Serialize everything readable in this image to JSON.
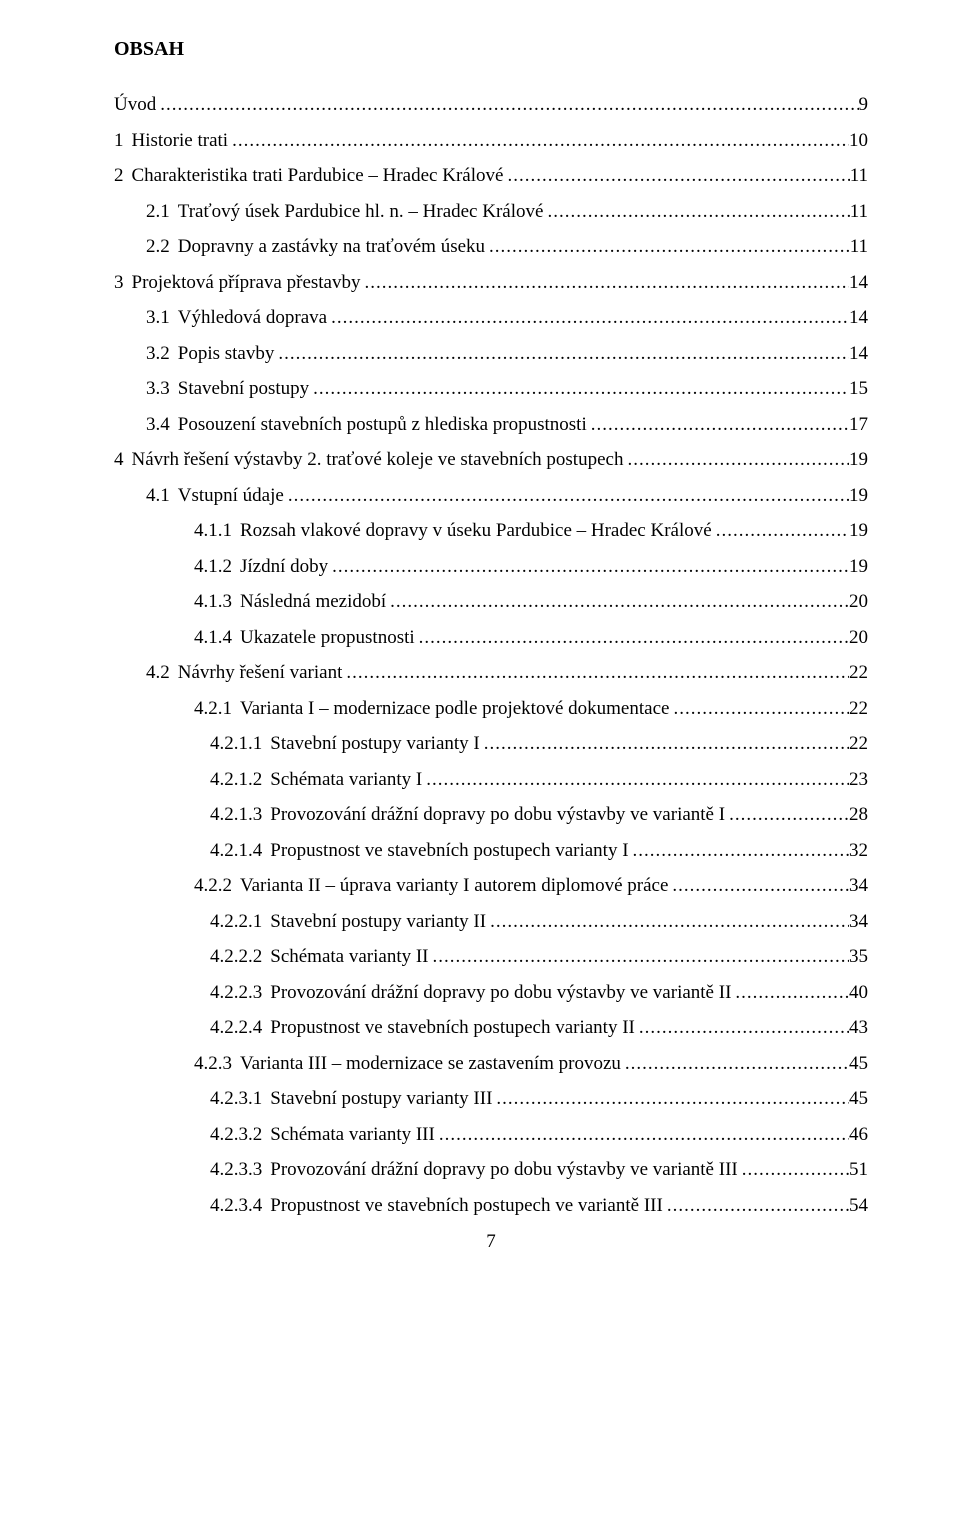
{
  "title": "OBSAH",
  "footer_page": "7",
  "toc": [
    {
      "num": "",
      "label": "Úvod",
      "page": "9",
      "indent": 0
    },
    {
      "num": "1",
      "label": "Historie trati",
      "page": "10",
      "indent": 0
    },
    {
      "num": "2",
      "label": "Charakteristika trati Pardubice – Hradec Králové",
      "page": "11",
      "indent": 0
    },
    {
      "num": "2.1",
      "label": "Traťový úsek Pardubice hl. n. – Hradec Králové",
      "page": "11",
      "indent": 1
    },
    {
      "num": "2.2",
      "label": "Dopravny a zastávky na traťovém úseku",
      "page": "11",
      "indent": 1
    },
    {
      "num": "3",
      "label": "Projektová příprava přestavby",
      "page": "14",
      "indent": 0
    },
    {
      "num": "3.1",
      "label": "Výhledová doprava",
      "page": "14",
      "indent": 1
    },
    {
      "num": "3.2",
      "label": "Popis stavby",
      "page": "14",
      "indent": 1
    },
    {
      "num": "3.3",
      "label": "Stavební postupy",
      "page": "15",
      "indent": 1
    },
    {
      "num": "3.4",
      "label": "Posouzení stavebních postupů z hlediska propustnosti",
      "page": "17",
      "indent": 1
    },
    {
      "num": "4",
      "label": "Návrh řešení výstavby 2. traťové koleje ve stavebních postupech",
      "page": "19",
      "indent": 0
    },
    {
      "num": "4.1",
      "label": "Vstupní údaje",
      "page": "19",
      "indent": 1
    },
    {
      "num": "4.1.1",
      "label": "Rozsah vlakové dopravy v úseku Pardubice – Hradec Králové",
      "page": "19",
      "indent": 2
    },
    {
      "num": "4.1.2",
      "label": "Jízdní doby",
      "page": "19",
      "indent": 2
    },
    {
      "num": "4.1.3",
      "label": "Následná mezidobí",
      "page": "20",
      "indent": 2
    },
    {
      "num": "4.1.4",
      "label": "Ukazatele propustnosti",
      "page": "20",
      "indent": 2
    },
    {
      "num": "4.2",
      "label": "Návrhy řešení variant",
      "page": "22",
      "indent": 1
    },
    {
      "num": "4.2.1",
      "label": "Varianta I – modernizace podle projektové dokumentace",
      "page": "22",
      "indent": 2
    },
    {
      "num": "4.2.1.1",
      "label": "Stavební postupy varianty I",
      "page": "22",
      "indent": 3
    },
    {
      "num": "4.2.1.2",
      "label": "Schémata varianty I",
      "page": "23",
      "indent": 3
    },
    {
      "num": "4.2.1.3",
      "label": "Provozování drážní dopravy po dobu výstavby ve variantě I",
      "page": "28",
      "indent": 3
    },
    {
      "num": "4.2.1.4",
      "label": "Propustnost ve stavebních postupech varianty I",
      "page": "32",
      "indent": 3
    },
    {
      "num": "4.2.2",
      "label": "Varianta II – úprava varianty I autorem diplomové práce",
      "page": "34",
      "indent": 2
    },
    {
      "num": "4.2.2.1",
      "label": "Stavební postupy varianty II",
      "page": "34",
      "indent": 3
    },
    {
      "num": "4.2.2.2",
      "label": "Schémata varianty II",
      "page": "35",
      "indent": 3
    },
    {
      "num": "4.2.2.3",
      "label": "Provozování drážní dopravy po dobu výstavby ve variantě II",
      "page": "40",
      "indent": 3
    },
    {
      "num": "4.2.2.4",
      "label": "Propustnost ve stavebních postupech varianty II",
      "page": "43",
      "indent": 3
    },
    {
      "num": "4.2.3",
      "label": "Varianta III – modernizace se zastavením provozu",
      "page": "45",
      "indent": 2
    },
    {
      "num": "4.2.3.1",
      "label": "Stavební postupy varianty III",
      "page": "45",
      "indent": 3
    },
    {
      "num": "4.2.3.2",
      "label": "Schémata varianty III",
      "page": "46",
      "indent": 3
    },
    {
      "num": "4.2.3.3",
      "label": "Provozování drážní dopravy po dobu výstavby ve variantě III",
      "page": "51",
      "indent": 3
    },
    {
      "num": "4.2.3.4",
      "label": "Propustnost ve stavebních postupech ve variantě III",
      "page": "54",
      "indent": 3
    }
  ]
}
